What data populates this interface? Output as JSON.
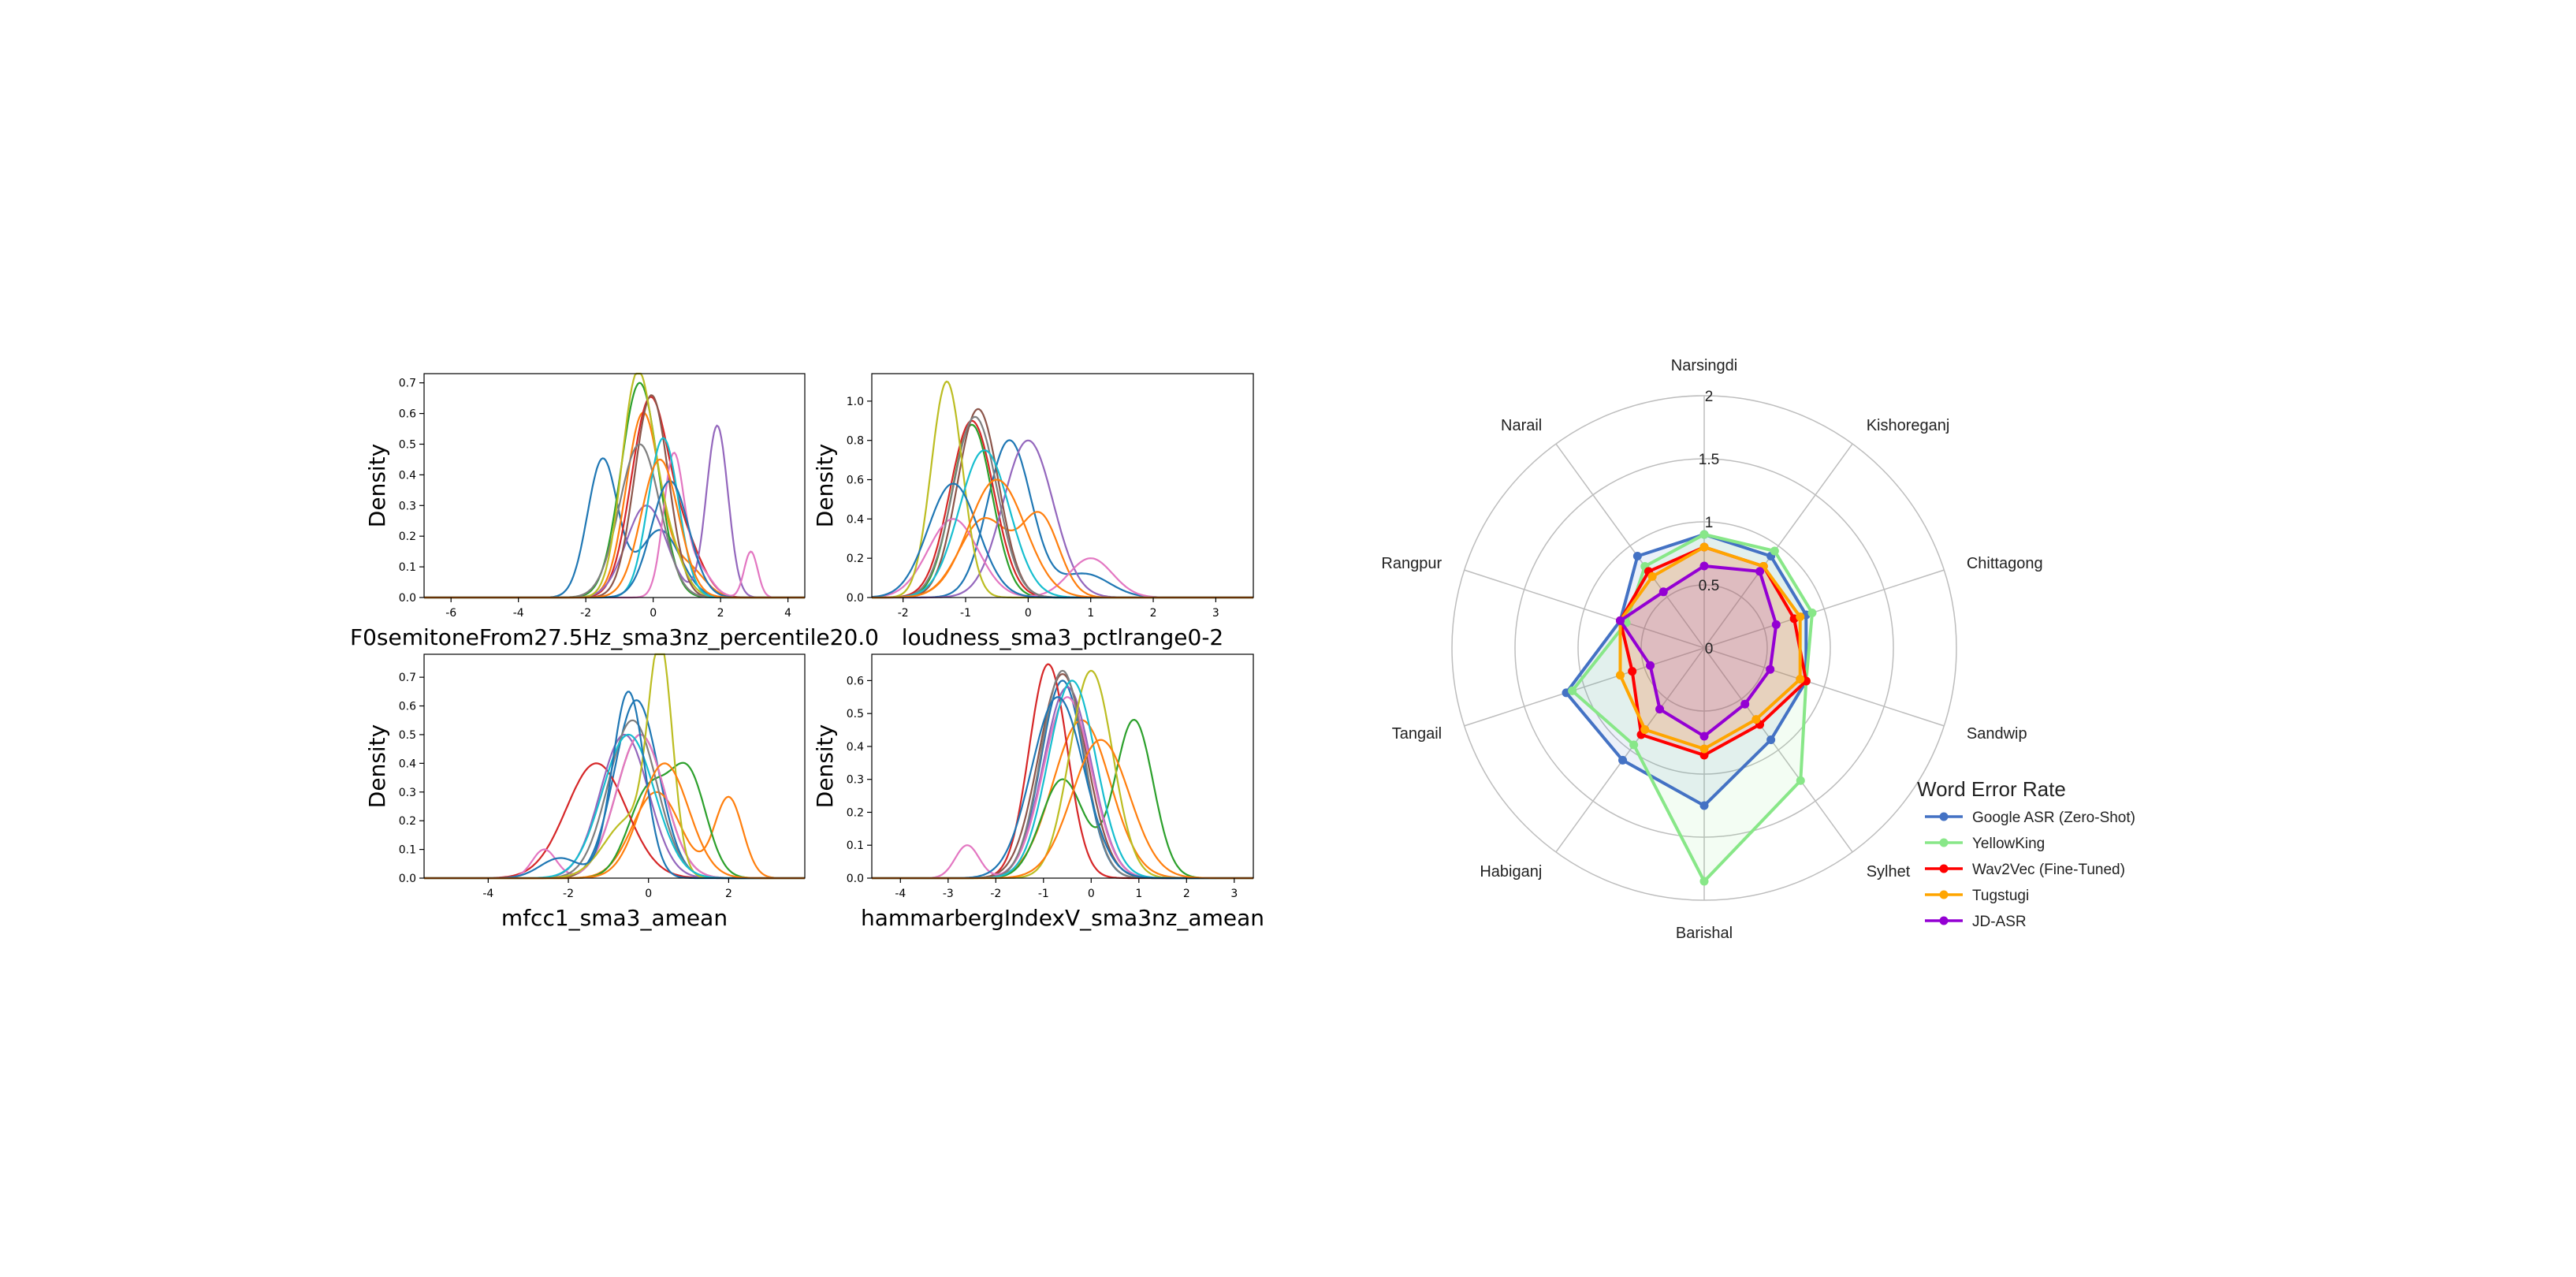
{
  "chart_data": [
    {
      "type": "line",
      "subtype": "kde-density",
      "xlabel": "F0semitoneFrom27.5Hz_sma3nz_percentile20.0",
      "ylabel": "Density",
      "xlim": [
        -6.8,
        4.5
      ],
      "ylim": [
        0,
        0.73
      ],
      "xticks": [
        -6,
        -4,
        -2,
        0,
        2,
        4
      ],
      "yticks": [
        0.0,
        0.1,
        0.2,
        0.3,
        0.4,
        0.5,
        0.6,
        0.7
      ],
      "ytick_labels": [
        "0.0",
        "0.1",
        "0.2",
        "0.3",
        "0.4",
        "0.5",
        "0.6",
        "0.7"
      ],
      "series": [
        {
          "peaks": [
            [
              -1.5,
              0.45,
              0.45
            ],
            [
              0.2,
              0.22,
              0.6
            ]
          ],
          "color": "#1f77b4"
        },
        {
          "peaks": [
            [
              -0.3,
              0.6,
              0.5
            ],
            [
              1.0,
              0.1,
              0.5
            ]
          ],
          "color": "#ff7f0e"
        },
        {
          "peaks": [
            [
              -0.4,
              0.7,
              0.55
            ]
          ],
          "color": "#2ca02c"
        },
        {
          "peaks": [
            [
              -0.1,
              0.64,
              0.55
            ],
            [
              1.0,
              0.15,
              0.5
            ]
          ],
          "color": "#d62728"
        },
        {
          "peaks": [
            [
              -0.2,
              0.3,
              0.6
            ],
            [
              1.9,
              0.56,
              0.32
            ]
          ],
          "color": "#9467bd"
        },
        {
          "peaks": [
            [
              -0.05,
              0.66,
              0.5
            ]
          ],
          "color": "#8c564b"
        },
        {
          "peaks": [
            [
              0.6,
              0.45,
              0.3
            ],
            [
              2.9,
              0.15,
              0.2
            ],
            [
              1.3,
              0.1,
              0.4
            ]
          ],
          "color": "#e377c2"
        },
        {
          "peaks": [
            [
              -0.4,
              0.5,
              0.6
            ]
          ],
          "color": "#7f7f7f"
        },
        {
          "peaks": [
            [
              -0.5,
              0.68,
              0.45
            ],
            [
              0.3,
              0.2,
              0.5
            ]
          ],
          "color": "#bcbd22"
        },
        {
          "peaks": [
            [
              0.3,
              0.52,
              0.45
            ]
          ],
          "color": "#17becf"
        },
        {
          "peaks": [
            [
              0.5,
              0.38,
              0.55
            ]
          ],
          "color": "#1f77b4"
        },
        {
          "peaks": [
            [
              0.2,
              0.45,
              0.55
            ]
          ],
          "color": "#ff7f0e"
        }
      ]
    },
    {
      "type": "line",
      "subtype": "kde-density",
      "xlabel": "loudness_sma3_pctlrange0-2",
      "ylabel": "Density",
      "xlim": [
        -2.5,
        3.6
      ],
      "ylim": [
        0,
        1.14
      ],
      "xticks": [
        -2,
        -1,
        0,
        1,
        2,
        3
      ],
      "yticks": [
        0.0,
        0.2,
        0.4,
        0.6,
        0.8,
        1.0
      ],
      "ytick_labels": [
        "0.0",
        "0.2",
        "0.4",
        "0.6",
        "0.8",
        "1.0"
      ],
      "series": [
        {
          "peaks": [
            [
              -0.3,
              0.8,
              0.35
            ],
            [
              0.9,
              0.12,
              0.4
            ]
          ],
          "color": "#1f77b4"
        },
        {
          "peaks": [
            [
              -0.7,
              0.4,
              0.4
            ],
            [
              0.2,
              0.4,
              0.3
            ]
          ],
          "color": "#ff7f0e"
        },
        {
          "peaks": [
            [
              -0.9,
              0.88,
              0.32
            ]
          ],
          "color": "#2ca02c"
        },
        {
          "peaks": [
            [
              -0.9,
              0.9,
              0.35
            ]
          ],
          "color": "#d62728"
        },
        {
          "peaks": [
            [
              0.0,
              0.8,
              0.4
            ]
          ],
          "color": "#9467bd"
        },
        {
          "peaks": [
            [
              -0.8,
              0.96,
              0.33
            ]
          ],
          "color": "#8c564b"
        },
        {
          "peaks": [
            [
              -1.2,
              0.4,
              0.4
            ],
            [
              1.0,
              0.2,
              0.35
            ]
          ],
          "color": "#e377c2"
        },
        {
          "peaks": [
            [
              -0.85,
              0.92,
              0.35
            ]
          ],
          "color": "#7f7f7f"
        },
        {
          "peaks": [
            [
              -1.3,
              1.1,
              0.25
            ]
          ],
          "color": "#bcbd22"
        },
        {
          "peaks": [
            [
              -0.7,
              0.75,
              0.4
            ]
          ],
          "color": "#17becf"
        },
        {
          "peaks": [
            [
              -1.2,
              0.58,
              0.4
            ]
          ],
          "color": "#1f77b4"
        },
        {
          "peaks": [
            [
              -0.5,
              0.6,
              0.45
            ]
          ],
          "color": "#ff7f0e"
        }
      ]
    },
    {
      "type": "line",
      "subtype": "kde-density",
      "xlabel": "mfcc1_sma3_amean",
      "ylabel": "Density",
      "xlim": [
        -5.6,
        3.9
      ],
      "ylim": [
        0,
        0.78
      ],
      "xticks": [
        -4,
        -2,
        0,
        2
      ],
      "yticks": [
        0.0,
        0.1,
        0.2,
        0.3,
        0.4,
        0.5,
        0.6,
        0.7
      ],
      "ytick_labels": [
        "0.0",
        "0.1",
        "0.2",
        "0.3",
        "0.4",
        "0.5",
        "0.6",
        "0.7"
      ],
      "series": [
        {
          "peaks": [
            [
              -0.3,
              0.62,
              0.55
            ]
          ],
          "color": "#1f77b4"
        },
        {
          "peaks": [
            [
              2.0,
              0.28,
              0.35
            ],
            [
              0.2,
              0.3,
              0.6
            ]
          ],
          "color": "#ff7f0e"
        },
        {
          "peaks": [
            [
              1.0,
              0.35,
              0.45
            ],
            [
              0.0,
              0.3,
              0.5
            ]
          ],
          "color": "#2ca02c"
        },
        {
          "peaks": [
            [
              -1.3,
              0.4,
              0.75
            ]
          ],
          "color": "#d62728"
        },
        {
          "peaks": [
            [
              -0.6,
              0.5,
              0.6
            ]
          ],
          "color": "#9467bd"
        },
        {
          "peaks": [
            [
              -0.2,
              0.5,
              0.6
            ]
          ],
          "color": "#8c564b"
        },
        {
          "peaks": [
            [
              -2.6,
              0.1,
              0.3
            ],
            [
              -0.2,
              0.5,
              0.6
            ]
          ],
          "color": "#e377c2"
        },
        {
          "peaks": [
            [
              -0.4,
              0.55,
              0.6
            ]
          ],
          "color": "#7f7f7f"
        },
        {
          "peaks": [
            [
              0.3,
              0.75,
              0.3
            ],
            [
              -0.5,
              0.2,
              0.6
            ]
          ],
          "color": "#bcbd22"
        },
        {
          "peaks": [
            [
              -0.5,
              0.5,
              0.65
            ]
          ],
          "color": "#17becf"
        },
        {
          "peaks": [
            [
              -0.5,
              0.65,
              0.4
            ],
            [
              -2.2,
              0.07,
              0.5
            ]
          ],
          "color": "#1f77b4"
        },
        {
          "peaks": [
            [
              0.4,
              0.4,
              0.6
            ]
          ],
          "color": "#ff7f0e"
        }
      ]
    },
    {
      "type": "line",
      "subtype": "kde-density",
      "xlabel": "hammarbergIndexV_sma3nz_amean",
      "ylabel": "Density",
      "xlim": [
        -4.6,
        3.4
      ],
      "ylim": [
        0,
        0.68
      ],
      "xticks": [
        -4,
        -3,
        -2,
        -1,
        0,
        1,
        2,
        3
      ],
      "yticks": [
        0.0,
        0.1,
        0.2,
        0.3,
        0.4,
        0.5,
        0.6
      ],
      "ytick_labels": [
        "0.0",
        "0.1",
        "0.2",
        "0.3",
        "0.4",
        "0.5",
        "0.6"
      ],
      "series": [
        {
          "peaks": [
            [
              -0.6,
              0.6,
              0.45
            ]
          ],
          "color": "#1f77b4"
        },
        {
          "peaks": [
            [
              -0.2,
              0.48,
              0.6
            ]
          ],
          "color": "#ff7f0e"
        },
        {
          "peaks": [
            [
              0.9,
              0.48,
              0.4
            ],
            [
              -0.6,
              0.3,
              0.45
            ]
          ],
          "color": "#2ca02c"
        },
        {
          "peaks": [
            [
              -0.9,
              0.65,
              0.4
            ]
          ],
          "color": "#d62728"
        },
        {
          "peaks": [
            [
              -0.5,
              0.58,
              0.5
            ]
          ],
          "color": "#9467bd"
        },
        {
          "peaks": [
            [
              -0.6,
              0.62,
              0.5
            ]
          ],
          "color": "#8c564b"
        },
        {
          "peaks": [
            [
              -2.6,
              0.1,
              0.25
            ],
            [
              -0.5,
              0.55,
              0.5
            ]
          ],
          "color": "#e377c2"
        },
        {
          "peaks": [
            [
              -0.6,
              0.63,
              0.45
            ]
          ],
          "color": "#7f7f7f"
        },
        {
          "peaks": [
            [
              0.0,
              0.63,
              0.45
            ]
          ],
          "color": "#bcbd22"
        },
        {
          "peaks": [
            [
              -0.4,
              0.6,
              0.5
            ]
          ],
          "color": "#17becf"
        },
        {
          "peaks": [
            [
              -0.7,
              0.55,
              0.55
            ]
          ],
          "color": "#1f77b4"
        },
        {
          "peaks": [
            [
              0.2,
              0.42,
              0.6
            ]
          ],
          "color": "#ff7f0e"
        }
      ]
    },
    {
      "type": "radar",
      "categories": [
        "Narsingdi",
        "Kishoreganj",
        "Chittagong",
        "Sandwip",
        "Sylhet",
        "Barishal",
        "Habiganj",
        "Tangail",
        "Rangpur",
        "Narail"
      ],
      "rlim": [
        0,
        2
      ],
      "rticks": [
        0,
        0.5,
        1,
        1.5,
        2
      ],
      "rtick_labels": [
        "0",
        "0.5",
        "1",
        "1.5",
        "2"
      ],
      "legend_title": "Word Error Rate",
      "legend_position": "bottom-right",
      "series": [
        {
          "name": "Google ASR (Zero-Shot)",
          "values": [
            0.9,
            0.9,
            0.85,
            0.85,
            0.9,
            1.25,
            1.1,
            1.15,
            0.7,
            0.9
          ],
          "color": "#4472C4",
          "fill": "#4472C4"
        },
        {
          "name": "YellowKing",
          "values": [
            0.9,
            0.95,
            0.9,
            0.85,
            1.3,
            1.85,
            0.95,
            1.1,
            0.65,
            0.8
          ],
          "color": "#88E788",
          "fill": "#88E788"
        },
        {
          "name": "Wav2Vec (Fine-Tuned)",
          "values": [
            0.8,
            0.8,
            0.75,
            0.85,
            0.75,
            0.85,
            0.85,
            0.6,
            0.7,
            0.75
          ],
          "color": "#FF0000",
          "fill": "#FF0000"
        },
        {
          "name": "Tugstugi",
          "values": [
            0.8,
            0.8,
            0.8,
            0.8,
            0.7,
            0.8,
            0.8,
            0.7,
            0.7,
            0.7
          ],
          "color": "#FFA500",
          "fill": "#FFA500"
        },
        {
          "name": "JD-ASR",
          "values": [
            0.65,
            0.75,
            0.6,
            0.55,
            0.55,
            0.7,
            0.6,
            0.45,
            0.7,
            0.55
          ],
          "color": "#9400D3",
          "fill": "#9400D3"
        }
      ]
    }
  ]
}
